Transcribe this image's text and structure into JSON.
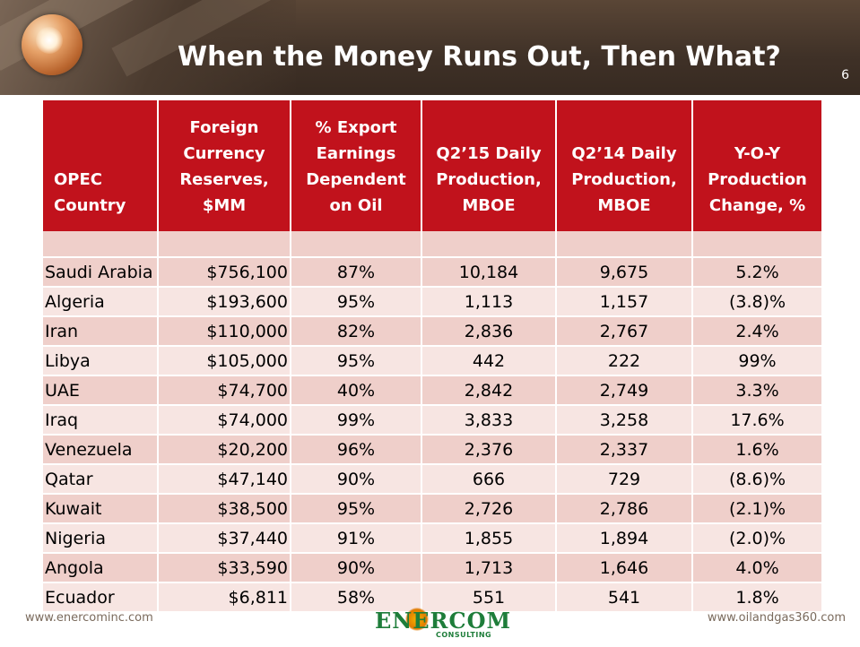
{
  "slide": {
    "title": "When the Money Runs Out, Then What?",
    "page_number": "6"
  },
  "table": {
    "headers": [
      [
        "OPEC",
        "Country"
      ],
      [
        "Foreign",
        "Currency",
        "Reserves,",
        "$MM"
      ],
      [
        "% Export",
        "Earnings",
        "Dependent",
        "on Oil"
      ],
      [
        "Q2’15 Daily",
        "Production,",
        "MBOE"
      ],
      [
        "Q2’14 Daily",
        "Production,",
        "MBOE"
      ],
      [
        "Y-O-Y",
        "Production",
        "Change, %"
      ]
    ],
    "rows": [
      [
        "Saudi Arabia",
        "$756,100",
        "87%",
        "10,184",
        "9,675",
        "5.2%"
      ],
      [
        "Algeria",
        "$193,600",
        "95%",
        "1,113",
        "1,157",
        "(3.8)%"
      ],
      [
        "Iran",
        "$110,000",
        "82%",
        "2,836",
        "2,767",
        "2.4%"
      ],
      [
        "Libya",
        "$105,000",
        "95%",
        "442",
        "222",
        "99%"
      ],
      [
        "UAE",
        "$74,700",
        "40%",
        "2,842",
        "2,749",
        "3.3%"
      ],
      [
        "Iraq",
        "$74,000",
        "99%",
        "3,833",
        "3,258",
        "17.6%"
      ],
      [
        "Venezuela",
        "$20,200",
        "96%",
        "2,376",
        "2,337",
        "1.6%"
      ],
      [
        "Qatar",
        "$47,140",
        "90%",
        "666",
        "729",
        "(8.6)%"
      ],
      [
        "Kuwait",
        "$38,500",
        "95%",
        "2,726",
        "2,786",
        "(2.1)%"
      ],
      [
        "Nigeria",
        "$37,440",
        "91%",
        "1,855",
        "1,894",
        "(2.0)%"
      ],
      [
        "Angola",
        "$33,590",
        "90%",
        "1,713",
        "1,646",
        "4.0%"
      ],
      [
        "Ecuador",
        "$6,811",
        "58%",
        "551",
        "541",
        "1.8%"
      ]
    ]
  },
  "footer": {
    "left_url": "www.enercominc.com",
    "right_url": "www.oilandgas360.com",
    "logo_text": "ENERCOM",
    "logo_sub": "CONSULTING"
  },
  "colors": {
    "header_bg": "#3f3127",
    "table_header": "#c1121c",
    "row_odd": "#efcfca",
    "row_even": "#f7e5e2",
    "logo_green": "#1e7d3a"
  }
}
